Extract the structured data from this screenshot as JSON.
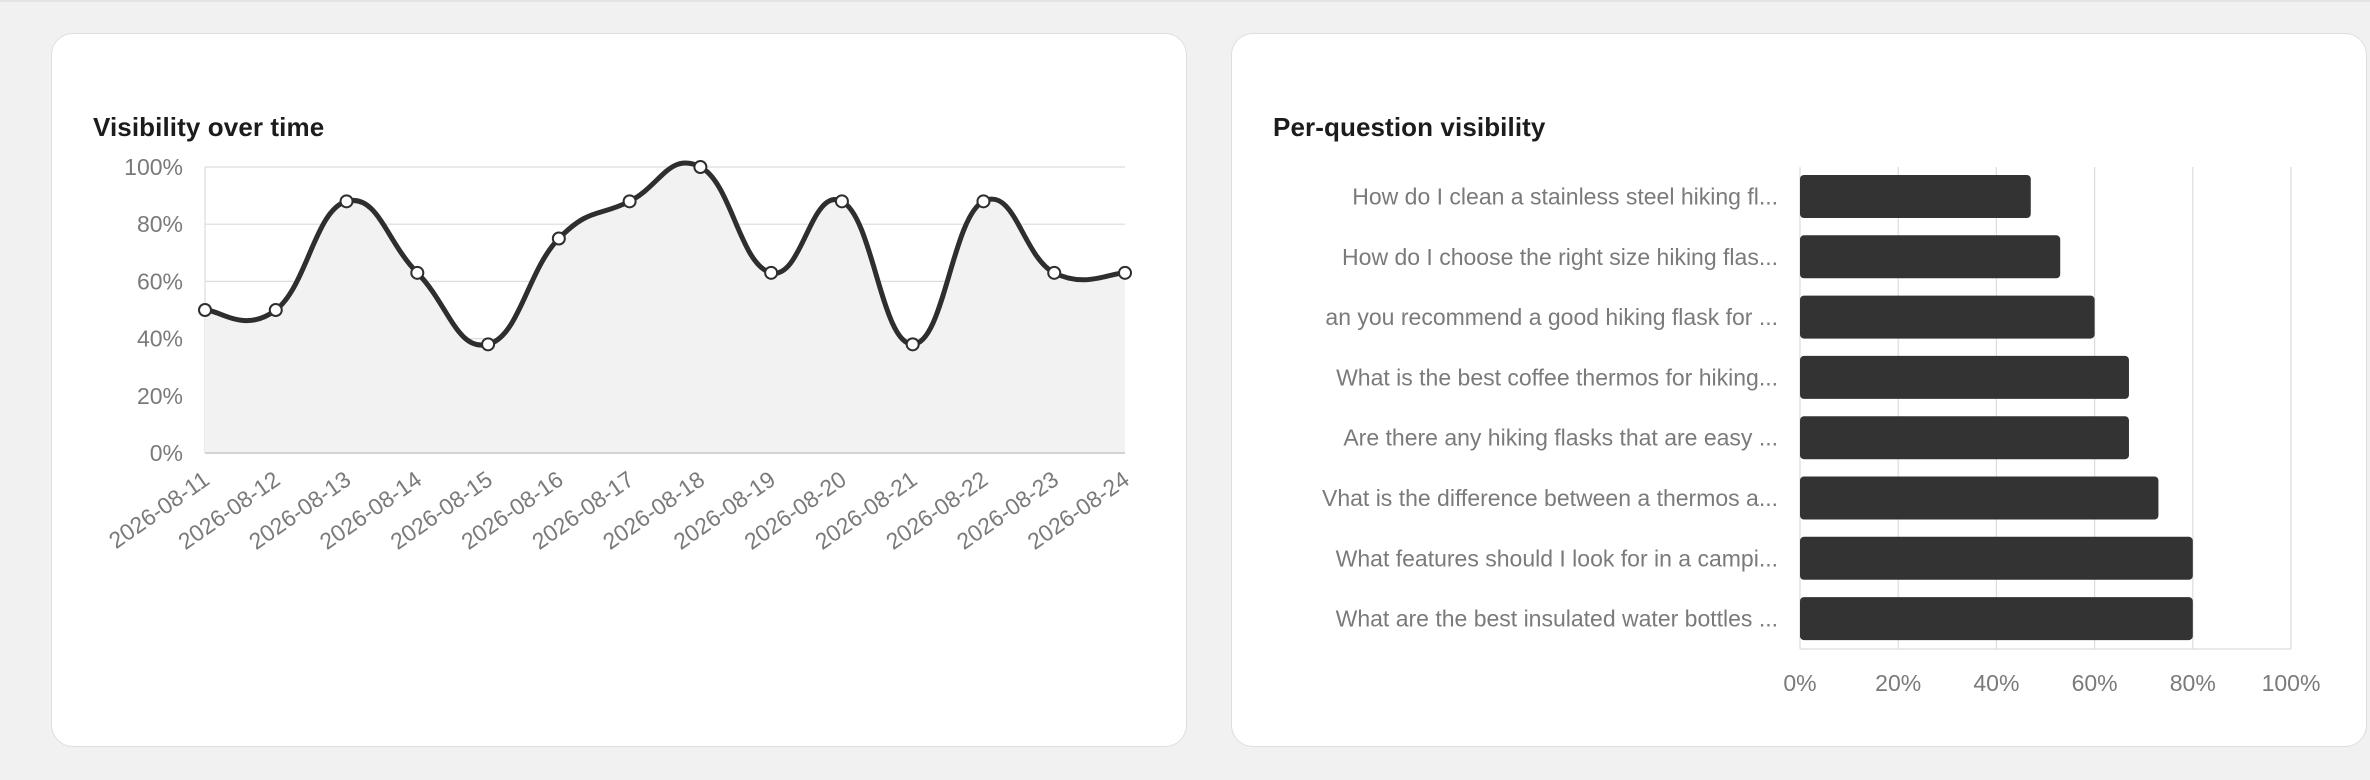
{
  "colors": {
    "line": "#2e2e2e",
    "area": "#f2f2f2",
    "bar": "#333333",
    "grid": "#dcdcdc",
    "tick_text": "#7a7a7a"
  },
  "charts": {
    "visibility_over_time": {
      "title": "Visibility over time"
    },
    "per_question_visibility": {
      "title": "Per-question visibility"
    }
  },
  "chart_data": [
    {
      "type": "line",
      "title": "Visibility over time",
      "x": [
        "2026-08-11",
        "2026-08-12",
        "2026-08-13",
        "2026-08-14",
        "2026-08-15",
        "2026-08-16",
        "2026-08-17",
        "2026-08-18",
        "2026-08-19",
        "2026-08-20",
        "2026-08-21",
        "2026-08-22",
        "2026-08-23",
        "2026-08-24"
      ],
      "values": [
        50,
        50,
        88,
        63,
        38,
        75,
        88,
        100,
        63,
        88,
        38,
        88,
        63,
        63
      ],
      "y_tick_labels": [
        "0%",
        "20%",
        "40%",
        "60%",
        "80%",
        "100%"
      ],
      "ylim": [
        0,
        100
      ],
      "grid": true,
      "legend": "none"
    },
    {
      "type": "bar",
      "orientation": "horizontal",
      "title": "Per-question visibility",
      "categories": [
        "How do I clean a stainless steel hiking fl...",
        "How do I choose the right size hiking flas...",
        "an you recommend a good hiking flask for ...",
        "What is the best coffee thermos for hiking...",
        "Are there any hiking flasks that are easy ...",
        "Vhat is the difference between a thermos a...",
        "What features should I look for in a campi...",
        "What are the best insulated water bottles ..."
      ],
      "values": [
        47,
        53,
        60,
        67,
        67,
        73,
        80,
        80
      ],
      "x_tick_labels": [
        "0%",
        "20%",
        "40%",
        "60%",
        "80%",
        "100%"
      ],
      "xlim": [
        0,
        100
      ],
      "grid": true,
      "legend": "none"
    }
  ]
}
